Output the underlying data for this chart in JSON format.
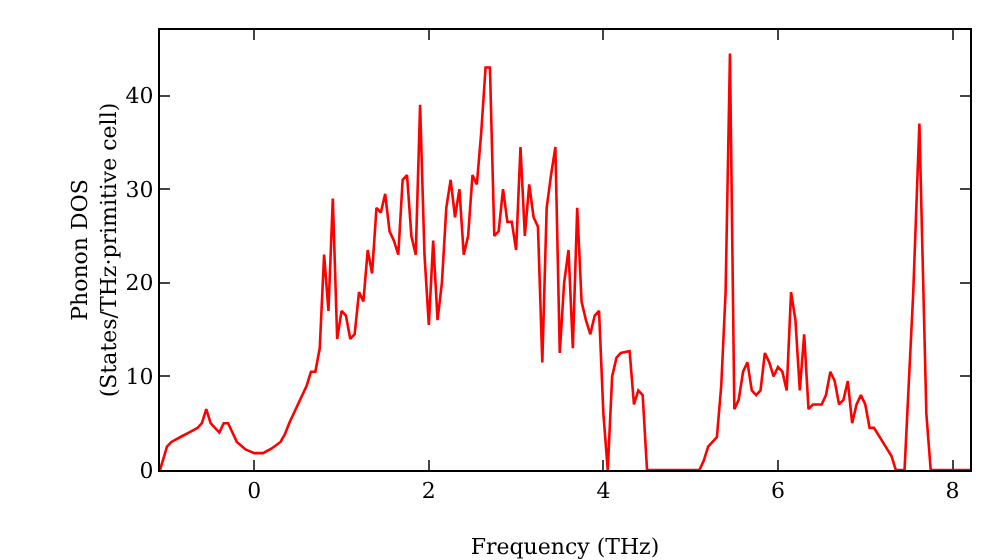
{
  "chart_data": {
    "type": "line",
    "xlabel": "Frequency (THz)",
    "ylabel": "Phonon DOS\n(States/THz·primitive cell)",
    "x": [
      -1.08,
      -1.0,
      -0.95,
      -0.85,
      -0.75,
      -0.65,
      -0.6,
      -0.55,
      -0.5,
      -0.45,
      -0.4,
      -0.35,
      -0.3,
      -0.25,
      -0.2,
      -0.1,
      0,
      0.1,
      0.2,
      0.3,
      0.35,
      0.4,
      0.5,
      0.6,
      0.65,
      0.7,
      0.75,
      0.8,
      0.85,
      0.9,
      0.95,
      1.0,
      1.05,
      1.1,
      1.15,
      1.2,
      1.25,
      1.3,
      1.35,
      1.4,
      1.45,
      1.5,
      1.55,
      1.6,
      1.65,
      1.7,
      1.75,
      1.8,
      1.85,
      1.9,
      1.95,
      2.0,
      2.05,
      2.1,
      2.15,
      2.2,
      2.25,
      2.3,
      2.35,
      2.4,
      2.45,
      2.5,
      2.55,
      2.6,
      2.65,
      2.7,
      2.75,
      2.8,
      2.85,
      2.9,
      2.95,
      3.0,
      3.05,
      3.1,
      3.15,
      3.2,
      3.25,
      3.3,
      3.35,
      3.4,
      3.45,
      3.5,
      3.55,
      3.6,
      3.65,
      3.7,
      3.75,
      3.8,
      3.85,
      3.9,
      3.95,
      4.0,
      4.05,
      4.1,
      4.15,
      4.2,
      4.3,
      4.35,
      4.4,
      4.45,
      4.5,
      5.1,
      5.15,
      5.2,
      5.3,
      5.35,
      5.4,
      5.45,
      5.5,
      5.55,
      5.6,
      5.65,
      5.7,
      5.75,
      5.8,
      5.85,
      5.9,
      5.95,
      6.0,
      6.05,
      6.1,
      6.15,
      6.2,
      6.25,
      6.3,
      6.35,
      6.4,
      6.45,
      6.5,
      6.55,
      6.6,
      6.65,
      6.7,
      6.75,
      6.8,
      6.85,
      6.9,
      6.95,
      7.0,
      7.05,
      7.1,
      7.2,
      7.3,
      7.35,
      7.45,
      7.55,
      7.62,
      7.7,
      7.75,
      8.2
    ],
    "series": [
      {
        "color": "#ff0000",
        "values": [
          0,
          2.5,
          3,
          3.5,
          4,
          4.5,
          5,
          6.5,
          5,
          4.5,
          4,
          5,
          5,
          4,
          3,
          2.2,
          1.8,
          1.8,
          2.3,
          3,
          3.8,
          5,
          7,
          9,
          10.5,
          10.5,
          13,
          23,
          17,
          29,
          14,
          17,
          16.5,
          14,
          14.5,
          19,
          18,
          23.5,
          21,
          28,
          27.5,
          29.5,
          25.5,
          24.5,
          23,
          31,
          31.5,
          25,
          23,
          39,
          23,
          15.5,
          24.5,
          16,
          20,
          28,
          31,
          27,
          30,
          23,
          25,
          31.5,
          30.5,
          36,
          43,
          43,
          25,
          25.5,
          30,
          26.5,
          26.5,
          23.5,
          34.5,
          25,
          30.5,
          27,
          26,
          11.5,
          28,
          31.5,
          34.5,
          12.5,
          20,
          23.5,
          13,
          28,
          18,
          16,
          14.5,
          16.5,
          17,
          6,
          0,
          10,
          12,
          12.5,
          12.7,
          7,
          8.5,
          8,
          0,
          0,
          1,
          2.5,
          3.5,
          9,
          19,
          44.5,
          6.5,
          7.5,
          10.5,
          11.5,
          8.5,
          8,
          8.5,
          12.5,
          11.5,
          10,
          11,
          10.5,
          8.5,
          19,
          16,
          8.5,
          14.5,
          6.5,
          7,
          7,
          7,
          8,
          10.5,
          9.5,
          7,
          7.5,
          9.5,
          5,
          7,
          8,
          7,
          4.5,
          4.5,
          3,
          1.5,
          0,
          0,
          19,
          37,
          6,
          0,
          0
        ]
      }
    ],
    "xlim": [
      -1.08,
      8.2
    ],
    "ylim": [
      0,
      47
    ],
    "xticks": [
      0,
      2,
      4,
      6,
      8
    ],
    "yticks": [
      0,
      10,
      20,
      30,
      40
    ],
    "grid": false,
    "marker": "none",
    "line_style": "solid"
  }
}
